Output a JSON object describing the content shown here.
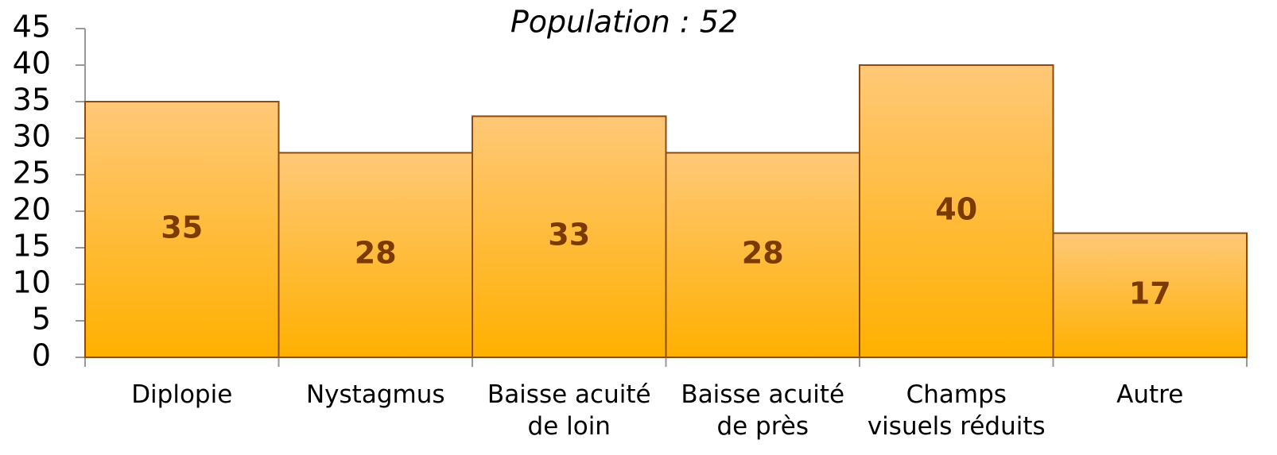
{
  "chart_data": {
    "type": "bar",
    "title": "Population : 52",
    "categories": [
      "Diplopie",
      "Nystagmus",
      "Baisse acuité\nde loin",
      "Baisse acuité\nde près",
      "Champs\nvisuels réduits",
      "Autre"
    ],
    "values": [
      35,
      28,
      33,
      28,
      40,
      17
    ],
    "color": "#ffb000",
    "ylim": [
      0,
      45
    ],
    "yticks": [
      0,
      5,
      10,
      15,
      20,
      25,
      30,
      35,
      40,
      45
    ],
    "grid": false
  }
}
